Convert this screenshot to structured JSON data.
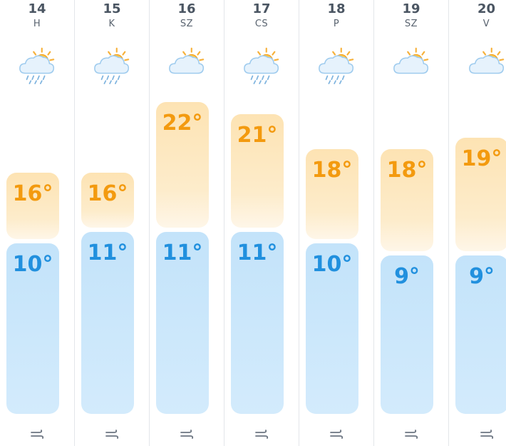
{
  "days": [
    {
      "day": "14",
      "abbr": "H",
      "icon": "rain-cloud-sun-icon",
      "high": "16°",
      "low": "10°"
    },
    {
      "day": "15",
      "abbr": "K",
      "icon": "rain-cloud-sun-icon",
      "high": "16°",
      "low": "11°"
    },
    {
      "day": "16",
      "abbr": "SZ",
      "icon": "sun-behind-cloud-icon",
      "high": "22°",
      "low": "11°"
    },
    {
      "day": "17",
      "abbr": "CS",
      "icon": "rain-cloud-sun-icon",
      "high": "21°",
      "low": "11°"
    },
    {
      "day": "18",
      "abbr": "P",
      "icon": "rain-cloud-sun-icon",
      "high": "18°",
      "low": "10°"
    },
    {
      "day": "19",
      "abbr": "SZ",
      "icon": "sun-behind-cloud-icon",
      "high": "18°",
      "low": "9°"
    },
    {
      "day": "20",
      "abbr": "V",
      "icon": "sun-behind-cloud-icon",
      "high": "19°",
      "low": "9°"
    }
  ],
  "colors": {
    "high_text": "#f39a0f",
    "low_text": "#2190de",
    "high_bar": "#fde3b3",
    "low_bar": "#c3e3fa"
  }
}
